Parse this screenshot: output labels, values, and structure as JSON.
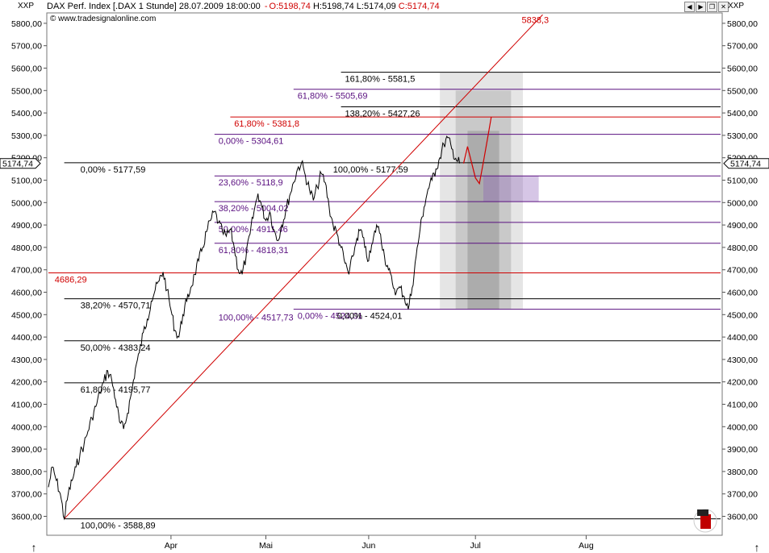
{
  "header": {
    "ticker_left": "XXP",
    "ticker_right": "XXP",
    "title": "DAX Perf. Index [.DAX  1 Stunde] 28.07.2009 18:00:00",
    "open": "O:5198,74",
    "high": "H:5198,74",
    "low": "L:5174,09",
    "close": "C:5174,74",
    "copyright": "© www.tradesignalonline.com"
  },
  "colors": {
    "red": "#d00000",
    "purple": "#5a1080",
    "black": "#000000",
    "grid": "#c8c8c8"
  },
  "chart_data": {
    "type": "line",
    "title": "DAX Perf. Index [.DAX 1 Stunde] 28.07.2009 18:00:00",
    "xlabel": "",
    "ylabel": "",
    "ylim": [
      3500,
      5900
    ],
    "y_ticks": [
      "3600,00",
      "3700,00",
      "3800,00",
      "3900,00",
      "4000,00",
      "4100,00",
      "4200,00",
      "4300,00",
      "4400,00",
      "4500,00",
      "4600,00",
      "4700,00",
      "4800,00",
      "4900,00",
      "5000,00",
      "5100,00",
      "5200,00",
      "5300,00",
      "5400,00",
      "5500,00",
      "5600,00",
      "5700,00",
      "5800,00"
    ],
    "y_tick_values": [
      3600,
      3700,
      3800,
      3900,
      4000,
      4100,
      4200,
      4300,
      4400,
      4500,
      4600,
      4700,
      4800,
      4900,
      5000,
      5100,
      5200,
      5300,
      5400,
      5500,
      5600,
      5700,
      5800
    ],
    "x_range": [
      0,
      170
    ],
    "x_ticks": [
      {
        "label": "Apr",
        "x": 31
      },
      {
        "label": "Mai",
        "x": 55
      },
      {
        "label": "Jun",
        "x": 81
      },
      {
        "label": "Jul",
        "x": 108
      },
      {
        "label": "Aug",
        "x": 136
      }
    ],
    "last_price_label": "5174,74",
    "last_price": 5174.74,
    "price_series": [
      [
        0,
        3730
      ],
      [
        1,
        3820
      ],
      [
        2,
        3760
      ],
      [
        3,
        3700
      ],
      [
        4,
        3588.89
      ],
      [
        5,
        3700
      ],
      [
        6,
        3760
      ],
      [
        7,
        3820
      ],
      [
        8,
        3880
      ],
      [
        9,
        3920
      ],
      [
        10,
        3980
      ],
      [
        11,
        4040
      ],
      [
        12,
        4090
      ],
      [
        13,
        4150
      ],
      [
        14,
        4200
      ],
      [
        15,
        4250
      ],
      [
        16,
        4210
      ],
      [
        17,
        4120
      ],
      [
        18,
        4020
      ],
      [
        19,
        3990
      ],
      [
        20,
        4060
      ],
      [
        21,
        4150
      ],
      [
        22,
        4260
      ],
      [
        23,
        4330
      ],
      [
        24,
        4420
      ],
      [
        25,
        4480
      ],
      [
        26,
        4560
      ],
      [
        27,
        4610
      ],
      [
        28,
        4650
      ],
      [
        29,
        4690
      ],
      [
        30,
        4610
      ],
      [
        31,
        4520
      ],
      [
        32,
        4430
      ],
      [
        33,
        4400
      ],
      [
        34,
        4500
      ],
      [
        35,
        4560
      ],
      [
        36,
        4620
      ],
      [
        37,
        4680
      ],
      [
        38,
        4740
      ],
      [
        39,
        4800
      ],
      [
        40,
        4870
      ],
      [
        41,
        4920
      ],
      [
        42,
        4960
      ],
      [
        43,
        4910
      ],
      [
        44,
        4870
      ],
      [
        45,
        4850
      ],
      [
        46,
        4880
      ],
      [
        47,
        4800
      ],
      [
        48,
        4700
      ],
      [
        49,
        4680
      ],
      [
        50,
        4760
      ],
      [
        51,
        4860
      ],
      [
        52,
        4960
      ],
      [
        53,
        5040
      ],
      [
        54,
        4980
      ],
      [
        55,
        4920
      ],
      [
        56,
        4960
      ],
      [
        57,
        4880
      ],
      [
        58,
        4830
      ],
      [
        59,
        4900
      ],
      [
        60,
        4960
      ],
      [
        61,
        5030
      ],
      [
        62,
        5090
      ],
      [
        63,
        5150
      ],
      [
        64,
        5177.59
      ],
      [
        65,
        5120
      ],
      [
        66,
        5060
      ],
      [
        67,
        5010
      ],
      [
        68,
        5070
      ],
      [
        69,
        5130
      ],
      [
        70,
        5090
      ],
      [
        71,
        4980
      ],
      [
        72,
        4900
      ],
      [
        73,
        4860
      ],
      [
        74,
        4800
      ],
      [
        75,
        4730
      ],
      [
        76,
        4680
      ],
      [
        77,
        4760
      ],
      [
        78,
        4840
      ],
      [
        79,
        4880
      ],
      [
        80,
        4800
      ],
      [
        81,
        4740
      ],
      [
        82,
        4820
      ],
      [
        83,
        4900
      ],
      [
        84,
        4860
      ],
      [
        85,
        4760
      ],
      [
        86,
        4700
      ],
      [
        87,
        4640
      ],
      [
        88,
        4600
      ],
      [
        89,
        4620
      ],
      [
        90,
        4580
      ],
      [
        91,
        4524.01
      ],
      [
        92,
        4620
      ],
      [
        93,
        4760
      ],
      [
        94,
        4880
      ],
      [
        95,
        4980
      ],
      [
        96,
        5060
      ],
      [
        97,
        5100
      ],
      [
        98,
        5150
      ],
      [
        99,
        5200
      ],
      [
        100,
        5260
      ],
      [
        101,
        5290
      ],
      [
        102,
        5240
      ],
      [
        103,
        5198
      ],
      [
        104,
        5174.74
      ]
    ],
    "projection": [
      [
        105,
        5174.74
      ],
      [
        106,
        5250
      ],
      [
        107,
        5180
      ],
      [
        108,
        5110
      ],
      [
        109,
        5085
      ],
      [
        110,
        5180
      ],
      [
        111,
        5280
      ],
      [
        112,
        5381.8
      ]
    ],
    "trendline": [
      [
        4,
        3588.89
      ],
      [
        125,
        5838.3
      ]
    ],
    "trendline_label": "5838,3",
    "levels": [
      {
        "value": 5581.5,
        "x0": 74,
        "color": "black",
        "label": "161,80% - 5581,5",
        "lx": 75
      },
      {
        "value": 5505.69,
        "x0": 62,
        "color": "purple",
        "label": "61,80% - 5505,69",
        "lx": 63
      },
      {
        "value": 5427.26,
        "x0": 74,
        "color": "black",
        "label": "138,20% - 5427,26",
        "lx": 75
      },
      {
        "value": 5381.8,
        "x0": 46,
        "color": "red",
        "label": "61,80% - 5381,8",
        "lx": 47
      },
      {
        "value": 5304.61,
        "x0": 42,
        "color": "purple",
        "label": "0,00% - 5304,61",
        "lx": 43
      },
      {
        "value": 5177.59,
        "x0": 4,
        "color": "black",
        "label": "0,00% - 5177,59",
        "lx": 4
      },
      {
        "value": 5177.59,
        "x0": 71,
        "color": "black",
        "label": "100,00% - 5177,59",
        "lx": 72,
        "nobar": true
      },
      {
        "value": 5118.9,
        "x0": 42,
        "color": "purple",
        "label": "23,60% - 5118,9",
        "lx": 43
      },
      {
        "value": 5004.02,
        "x0": 42,
        "color": "purple",
        "label": "38,20% - 5004,02",
        "lx": 43
      },
      {
        "value": 4911.46,
        "x0": 42,
        "color": "purple",
        "label": "50,00% - 4911,46",
        "lx": 43
      },
      {
        "value": 4818.31,
        "x0": 42,
        "color": "purple",
        "label": "61,80% - 4818,31",
        "lx": 43
      },
      {
        "value": 4686.29,
        "x0": 0,
        "color": "red",
        "label": "4686,29",
        "lx": 2
      },
      {
        "value": 4570.71,
        "x0": 4,
        "color": "black",
        "label": "38,20% - 4570,71",
        "lx": 4
      },
      {
        "value": 4524.01,
        "x0": 62,
        "color": "purple",
        "label": "0,00% - 4524,01",
        "lx": 63
      },
      {
        "value": 4524.01,
        "x0": 72,
        "color": "black",
        "label": "0,00% - 4524,01",
        "lx": 73,
        "nobar": true
      },
      {
        "value": 4517.73,
        "x0": 42,
        "color": "purple",
        "label": "100,00% - 4517,73",
        "lx": 43,
        "nobar": true
      },
      {
        "value": 4383.24,
        "x0": 4,
        "color": "black",
        "label": "50,00% - 4383,24",
        "lx": 4
      },
      {
        "value": 4195.77,
        "x0": 4,
        "color": "black",
        "label": "61,80% - 4195,77",
        "lx": 4
      },
      {
        "value": 3588.89,
        "x0": 4,
        "color": "black",
        "label": "100,00% - 3588,89",
        "lx": 4
      }
    ],
    "time_zones": [
      {
        "x0": 99,
        "x1": 120,
        "y0": 4524,
        "y1": 5580,
        "opacity": 0.1
      },
      {
        "x0": 103,
        "x1": 117,
        "y0": 4524,
        "y1": 5500,
        "opacity": 0.12
      },
      {
        "x0": 106,
        "x1": 114,
        "y0": 4524,
        "y1": 5320,
        "opacity": 0.14
      }
    ],
    "target_box": {
      "x0": 110,
      "x1": 124,
      "y0": 5004,
      "y1": 5118
    }
  }
}
